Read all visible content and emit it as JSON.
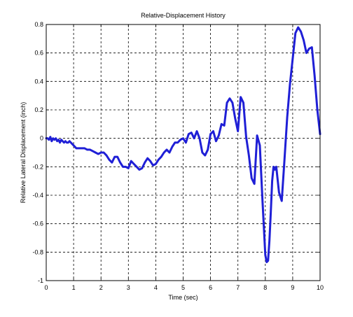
{
  "chart_data": {
    "type": "line",
    "title": "Relative-Displacement History",
    "xlabel": "Time (sec)",
    "ylabel": "Relative Lateral Displacement (inch)",
    "xlim": [
      0,
      10
    ],
    "ylim": [
      -1,
      0.8
    ],
    "xticks": [
      0,
      1,
      2,
      3,
      4,
      5,
      6,
      7,
      8,
      9,
      10
    ],
    "yticks": [
      -1,
      -0.8,
      -0.6,
      -0.4,
      -0.2,
      0,
      0.2,
      0.4,
      0.6,
      0.8
    ],
    "xtick_labels": [
      "0",
      "1",
      "2",
      "3",
      "4",
      "5",
      "6",
      "7",
      "8",
      "9",
      "10"
    ],
    "ytick_labels": [
      "-1",
      "-0.8",
      "-0.6",
      "-0.4",
      "-0.2",
      "0",
      "0.2",
      "0.4",
      "0.6",
      "0.8"
    ],
    "grid": true,
    "color": "#1f1fd6",
    "series": [
      {
        "x": [
          0.0,
          0.05,
          0.1,
          0.15,
          0.2,
          0.25,
          0.3,
          0.35,
          0.4,
          0.45,
          0.5,
          0.55,
          0.6,
          0.65,
          0.7,
          0.75,
          0.8,
          0.85,
          0.9,
          0.95,
          1.0,
          1.05,
          1.1,
          1.2,
          1.3,
          1.4,
          1.5,
          1.6,
          1.7,
          1.8,
          1.9,
          2.0,
          2.1,
          2.2,
          2.3,
          2.4,
          2.5,
          2.6,
          2.7,
          2.8,
          2.9,
          3.0,
          3.1,
          3.2,
          3.3,
          3.4,
          3.5,
          3.6,
          3.7,
          3.8,
          3.9,
          4.0,
          4.1,
          4.2,
          4.3,
          4.4,
          4.5,
          4.6,
          4.7,
          4.8,
          4.9,
          5.0,
          5.1,
          5.2,
          5.3,
          5.4,
          5.5,
          5.6,
          5.7,
          5.8,
          5.9,
          6.0,
          6.1,
          6.2,
          6.3,
          6.4,
          6.5,
          6.6,
          6.7,
          6.8,
          6.9,
          7.0,
          7.1,
          7.2,
          7.3,
          7.4,
          7.5,
          7.6,
          7.7,
          7.8,
          7.9,
          8.0,
          8.05,
          8.1,
          8.15,
          8.2,
          8.25,
          8.3,
          8.35,
          8.4,
          8.5,
          8.6,
          8.7,
          8.8,
          8.9,
          9.0,
          9.1,
          9.2,
          9.3,
          9.4,
          9.5,
          9.6,
          9.7,
          9.8,
          9.9,
          10.0
        ],
        "y": [
          0.0,
          0.0,
          -0.01,
          0.01,
          -0.02,
          0.0,
          -0.01,
          0.0,
          -0.02,
          -0.01,
          -0.03,
          -0.01,
          -0.02,
          -0.03,
          -0.02,
          -0.03,
          -0.03,
          -0.02,
          -0.03,
          -0.04,
          -0.05,
          -0.06,
          -0.07,
          -0.07,
          -0.07,
          -0.07,
          -0.08,
          -0.08,
          -0.09,
          -0.1,
          -0.11,
          -0.1,
          -0.1,
          -0.12,
          -0.15,
          -0.17,
          -0.13,
          -0.13,
          -0.17,
          -0.2,
          -0.2,
          -0.21,
          -0.16,
          -0.18,
          -0.2,
          -0.22,
          -0.21,
          -0.17,
          -0.14,
          -0.16,
          -0.19,
          -0.18,
          -0.15,
          -0.13,
          -0.1,
          -0.08,
          -0.1,
          -0.06,
          -0.03,
          -0.03,
          -0.01,
          0.0,
          -0.03,
          0.03,
          0.04,
          0.0,
          0.05,
          0.0,
          -0.1,
          -0.12,
          -0.08,
          0.03,
          0.05,
          -0.02,
          0.02,
          0.1,
          0.09,
          0.25,
          0.28,
          0.25,
          0.14,
          0.05,
          0.29,
          0.25,
          0.01,
          -0.12,
          -0.28,
          -0.32,
          0.02,
          -0.05,
          -0.45,
          -0.82,
          -0.87,
          -0.86,
          -0.72,
          -0.52,
          -0.3,
          -0.2,
          -0.22,
          -0.2,
          -0.38,
          -0.44,
          -0.15,
          0.15,
          0.38,
          0.56,
          0.74,
          0.78,
          0.75,
          0.69,
          0.6,
          0.63,
          0.64,
          0.44,
          0.2,
          0.03
        ]
      }
    ]
  }
}
